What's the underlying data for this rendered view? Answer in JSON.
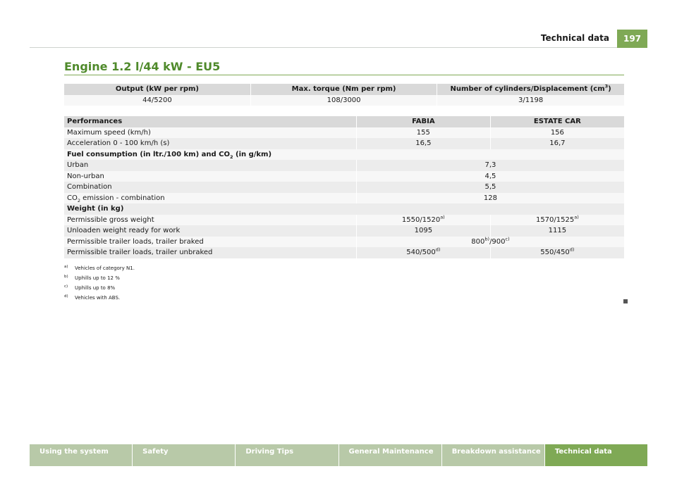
{
  "header": {
    "title": "Technical data",
    "page_number": "197"
  },
  "page_title": "Engine 1.2 l/44 kW - EU5",
  "engine_table": {
    "h1": "Output (kW per rpm)",
    "h2": "Max. torque (Nm per rpm)",
    "h3_pre": "Number of cylinders/Displacement (cm",
    "h3_sup": "3",
    "h3_post": ")",
    "v1": "44/5200",
    "v2": "108/3000",
    "v3": "3/1198"
  },
  "perf_table": {
    "head_label": "Performances",
    "col_fabia": "FABIA",
    "col_estate": "ESTATE CAR",
    "max_speed": {
      "label": "Maximum speed (km/h)",
      "fabia": "155",
      "estate": "156"
    },
    "accel": {
      "label": "Acceleration 0 - 100 km/h (s)",
      "fabia": "16,5",
      "estate": "16,7"
    },
    "fuel_heading": {
      "pre": "Fuel consumption (in ltr./100 km) and CO",
      "sub": "2",
      "post": " (in g/km)"
    },
    "urban": {
      "label": "Urban",
      "value": "7,3"
    },
    "nonurban": {
      "label": "Non-urban",
      "value": "4,5"
    },
    "combination": {
      "label": "Combination",
      "value": "5,5"
    },
    "co2": {
      "pre": "CO",
      "sub": "2",
      "post": " emission - combination",
      "value": "128"
    },
    "weight_heading": "Weight (in kg)",
    "gross": {
      "label": "Permissible gross weight",
      "fabia": "1550/1520",
      "fabia_sup": "a)",
      "estate": "1570/1525",
      "estate_sup": "a)"
    },
    "unladen": {
      "label": "Unloaden weight ready for work",
      "fabia": "1095",
      "estate": "1115"
    },
    "braked": {
      "label": "Permissible trailer loads, trailer braked",
      "v1": "800",
      "s1": "b)",
      "v2": "/900",
      "s2": "c)"
    },
    "unbraked": {
      "label": "Permissible trailer loads, trailer unbraked",
      "fabia": "540/500",
      "fabia_sup": "d)",
      "estate": "550/450",
      "estate_sup": "d)"
    }
  },
  "footnotes": [
    {
      "mark": "a)",
      "text": "Vehicles of category N1."
    },
    {
      "mark": "b)",
      "text": "Uphills up to 12 %"
    },
    {
      "mark": "c)",
      "text": "Uphills up to 8%"
    },
    {
      "mark": "d)",
      "text": "Vehicles with ABS."
    }
  ],
  "bottom_nav": [
    {
      "label": "Using the system"
    },
    {
      "label": "Safety"
    },
    {
      "label": "Driving Tips"
    },
    {
      "label": "General Maintenance"
    },
    {
      "label": "Breakdown assistance"
    },
    {
      "label": "Technical data"
    }
  ],
  "colors": {
    "accent": "#7fa955",
    "title_green": "#4f8a2b",
    "tab_inactive": "#b8c9a8"
  }
}
